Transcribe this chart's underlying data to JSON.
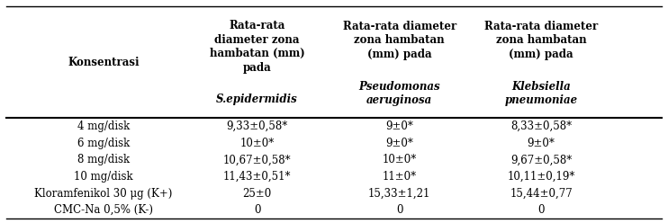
{
  "rows": [
    [
      "4 mg/disk",
      "9,33±0,58*",
      "9±0*",
      "8,33±0,58*"
    ],
    [
      "6 mg/disk",
      "10±0*",
      "9±0*",
      "9±0*"
    ],
    [
      "8 mg/disk",
      "10,67±0,58*",
      "10±0*",
      "9,67±0,58*"
    ],
    [
      "10 mg/disk",
      "11,43±0,51*",
      "11±0*",
      "10,11±0,19*"
    ],
    [
      "Kloramfenikol 30 μg (K+)",
      "25±0",
      "15,33±1,21",
      "15,44±0,77"
    ],
    [
      "CMC-Na 0,5% (K-)",
      "0",
      "0",
      "0"
    ]
  ],
  "background_color": "#ffffff",
  "fig_width": 7.42,
  "fig_height": 2.48,
  "fontsize": 8.5,
  "header_fontsize": 8.5
}
